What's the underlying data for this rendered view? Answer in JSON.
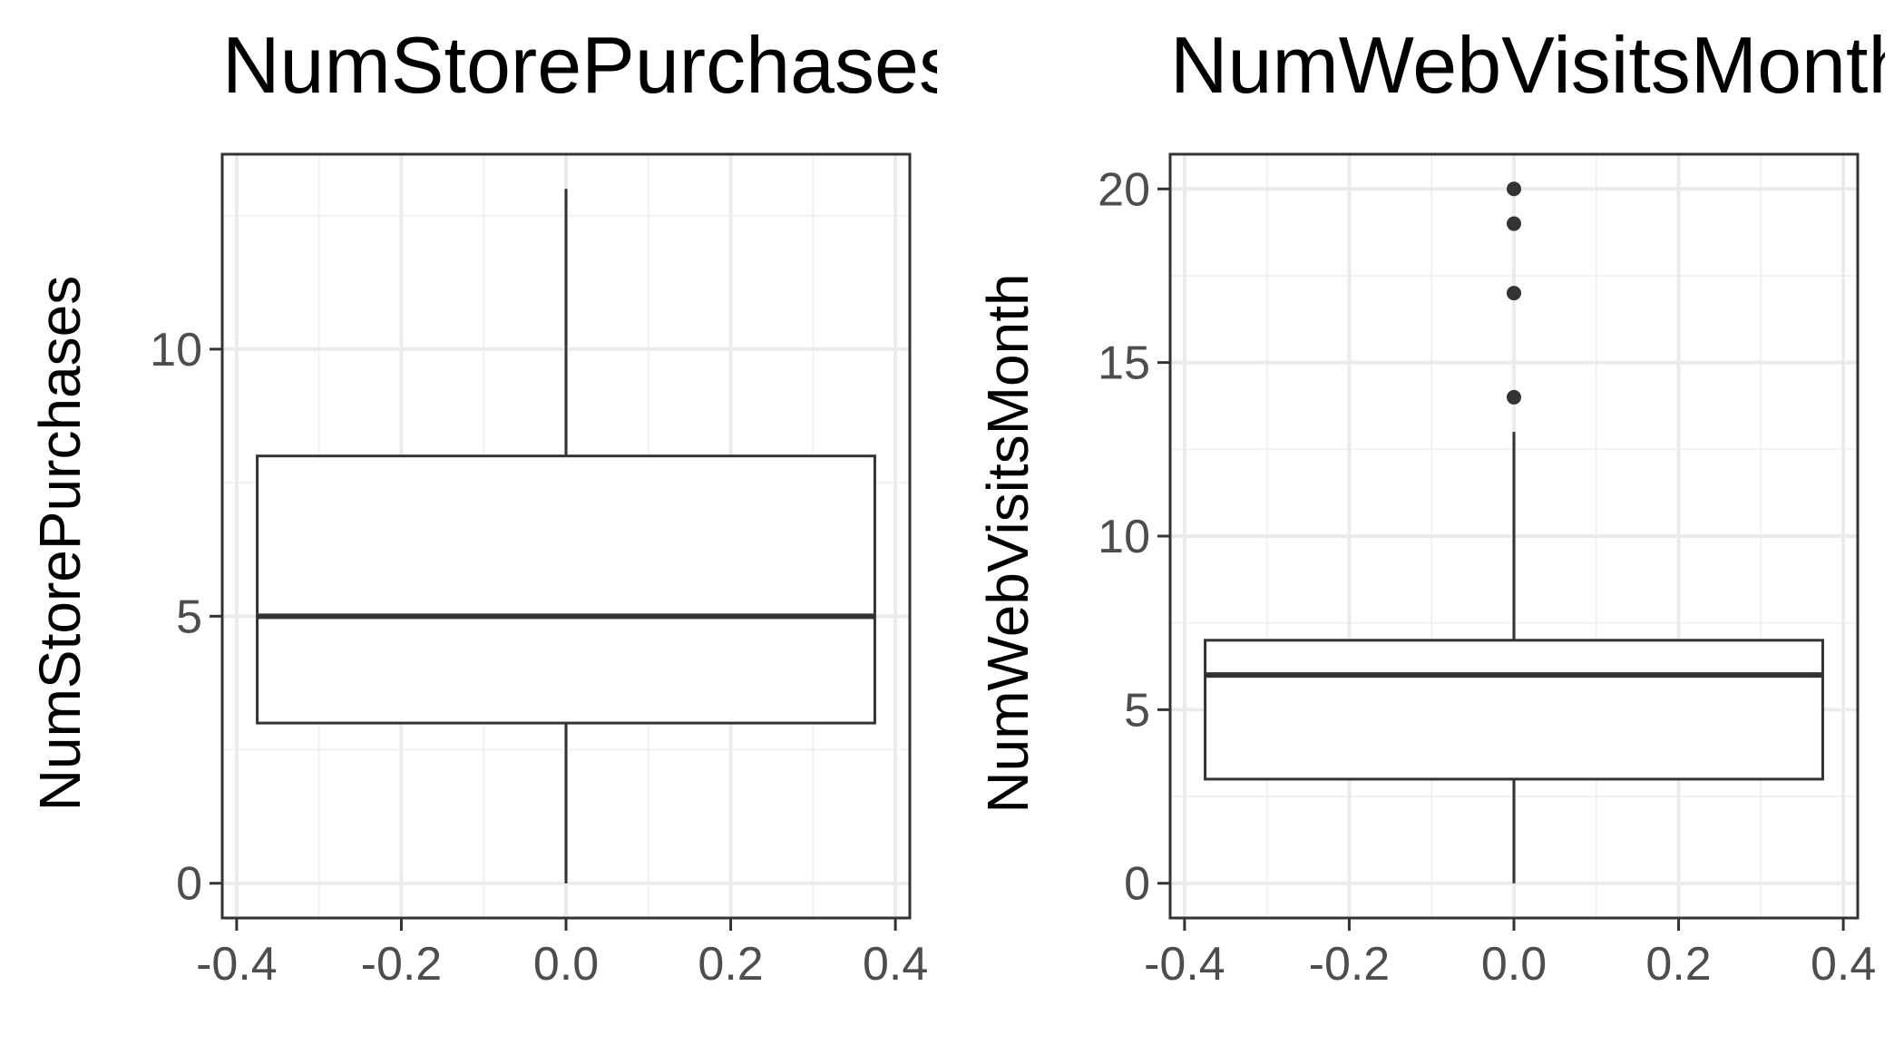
{
  "chart_data": [
    {
      "type": "box",
      "title": "NumStorePurchases",
      "ylabel": "NumStorePurchases",
      "xlabel": "",
      "xlim": [
        -0.4,
        0.4
      ],
      "ylim": [
        -0.65,
        13.65
      ],
      "x_ticks": [
        "-0.4",
        "-0.2",
        "0.0",
        "0.2",
        "0.4"
      ],
      "y_ticks": [
        "0",
        "5",
        "10"
      ],
      "grid": true,
      "box": {
        "x_center": 0.0,
        "x_halfwidth": 0.375,
        "min": 0,
        "q1": 3,
        "median": 5,
        "q3": 8,
        "max": 13,
        "outliers": []
      }
    },
    {
      "type": "box",
      "title": "NumWebVisitsMonth",
      "ylabel": "NumWebVisitsMonth",
      "xlabel": "",
      "xlim": [
        -0.4,
        0.4
      ],
      "ylim": [
        -1.0,
        21.0
      ],
      "x_ticks": [
        "-0.4",
        "-0.2",
        "0.0",
        "0.2",
        "0.4"
      ],
      "y_ticks": [
        "0",
        "5",
        "10",
        "15",
        "20"
      ],
      "grid": true,
      "box": {
        "x_center": 0.0,
        "x_halfwidth": 0.375,
        "min": 0,
        "q1": 3,
        "median": 6,
        "q3": 7,
        "max": 13,
        "outliers": [
          14,
          17,
          19,
          20
        ]
      }
    }
  ]
}
